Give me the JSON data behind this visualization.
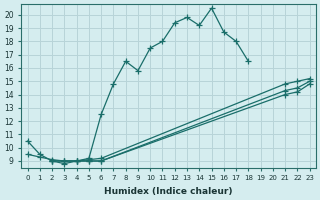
{
  "xlabel": "Humidex (Indice chaleur)",
  "background_color": "#d5edef",
  "grid_color": "#b8d4d8",
  "line_color": "#1a6e6a",
  "xlim": [
    -0.5,
    23.5
  ],
  "ylim": [
    8.5,
    20.8
  ],
  "xticks": [
    0,
    1,
    2,
    3,
    4,
    5,
    6,
    7,
    8,
    9,
    10,
    11,
    12,
    13,
    14,
    15,
    16,
    17,
    18,
    19,
    20,
    21,
    22,
    23
  ],
  "yticks": [
    9,
    10,
    11,
    12,
    13,
    14,
    15,
    16,
    17,
    18,
    19,
    20
  ],
  "line1_x": [
    0,
    1,
    2,
    3,
    4,
    5,
    6,
    7,
    8,
    9,
    10,
    11,
    12,
    13,
    14,
    15,
    16,
    17,
    18
  ],
  "line1_y": [
    10.5,
    9.5,
    9.0,
    8.8,
    9.0,
    9.2,
    12.5,
    14.8,
    16.5,
    15.8,
    17.5,
    18.0,
    19.4,
    19.8,
    19.2,
    20.5,
    18.7,
    18.0,
    16.5
  ],
  "line2_x": [
    0,
    1,
    2,
    3,
    4,
    5,
    6,
    21,
    22,
    23
  ],
  "line2_y": [
    9.5,
    9.3,
    9.1,
    9.0,
    9.0,
    9.1,
    9.2,
    14.8,
    15.0,
    15.2
  ],
  "line3_x": [
    2,
    3,
    4,
    5,
    6,
    21,
    22,
    23
  ],
  "line3_y": [
    9.0,
    9.0,
    9.0,
    9.0,
    9.0,
    14.3,
    14.5,
    15.0
  ],
  "line4_x": [
    2,
    3,
    4,
    5,
    6,
    21,
    22,
    23
  ],
  "line4_y": [
    9.0,
    9.0,
    9.0,
    9.0,
    9.0,
    14.0,
    14.2,
    14.8
  ]
}
